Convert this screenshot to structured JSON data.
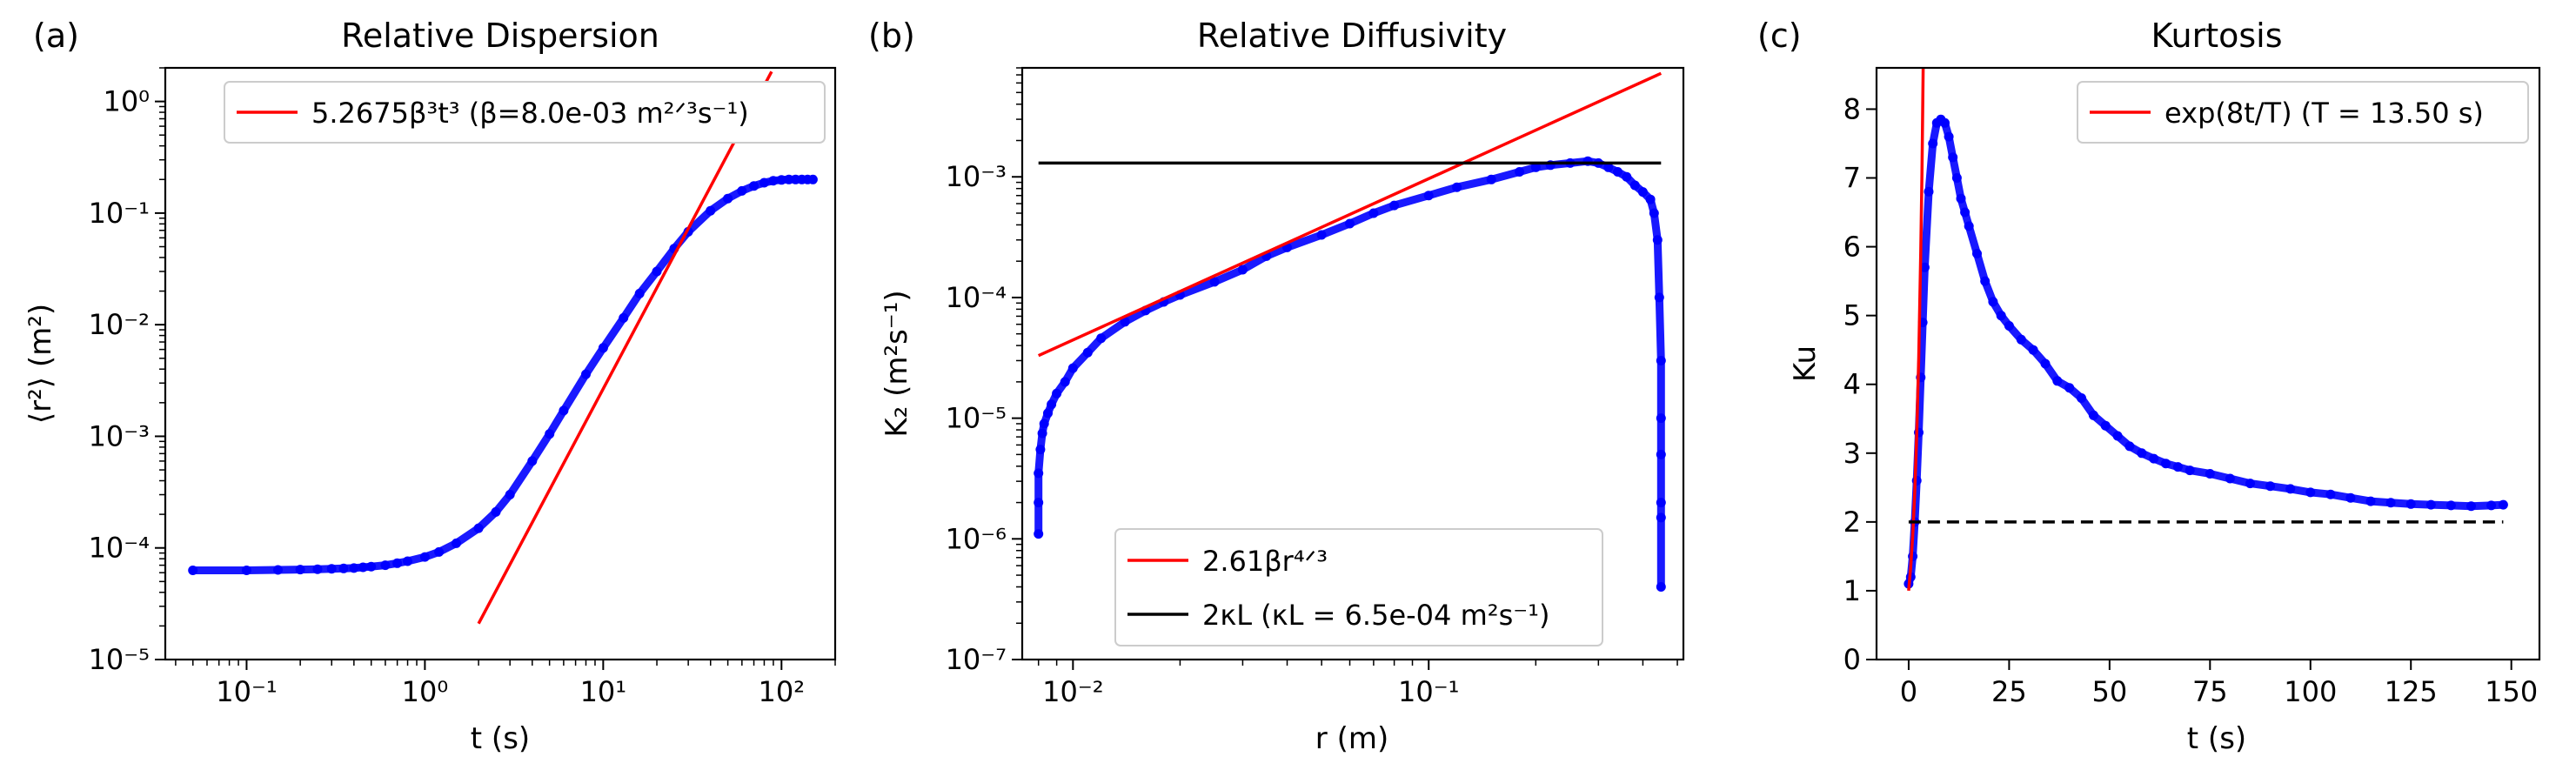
{
  "chart_data": [
    {
      "panel_label": "(a)",
      "type": "scatter",
      "title": "Relative Dispersion",
      "xlabel": "t (s)",
      "ylabel": "⟨r²⟩ (m²)",
      "xscale": "log",
      "yscale": "log",
      "xlim": [
        0.035,
        200
      ],
      "ylim": [
        1e-05,
        2
      ],
      "xticks": [
        0.1,
        1,
        10,
        100
      ],
      "xtick_labels": [
        "10⁻¹",
        "10⁰",
        "10¹",
        "10²"
      ],
      "yticks": [
        1e-05,
        0.0001,
        0.001,
        0.01,
        0.1,
        1
      ],
      "ytick_labels": [
        "10⁻⁵",
        "10⁻⁴",
        "10⁻³",
        "10⁻²",
        "10⁻¹",
        "10⁰"
      ],
      "legend_position": "upper right",
      "series": [
        {
          "name": "",
          "kind": "scatter",
          "color": "#0000ff",
          "x": [
            0.05,
            0.1,
            0.15,
            0.2,
            0.25,
            0.3,
            0.35,
            0.4,
            0.45,
            0.5,
            0.6,
            0.7,
            0.8,
            1.0,
            1.2,
            1.5,
            2.0,
            2.5,
            3.0,
            4.0,
            5.0,
            6.0,
            8.0,
            10,
            13,
            16,
            20,
            25,
            30,
            40,
            50,
            60,
            70,
            80,
            90,
            100,
            110,
            120,
            130,
            140,
            150
          ],
          "y": [
            6.3e-05,
            6.3e-05,
            6.35e-05,
            6.4e-05,
            6.45e-05,
            6.5e-05,
            6.55e-05,
            6.6e-05,
            6.7e-05,
            6.8e-05,
            7e-05,
            7.3e-05,
            7.6e-05,
            8.3e-05,
            9.2e-05,
            0.00011,
            0.00015,
            0.00021,
            0.0003,
            0.0006,
            0.00105,
            0.0017,
            0.0036,
            0.0062,
            0.0115,
            0.019,
            0.03,
            0.048,
            0.068,
            0.105,
            0.135,
            0.158,
            0.175,
            0.187,
            0.195,
            0.198,
            0.2,
            0.2,
            0.2,
            0.2,
            0.2
          ]
        },
        {
          "name": "5.2675β³t³ (β=8.0e-03 m²ᐟ³s⁻¹)",
          "kind": "line",
          "color": "#ff0000",
          "x": [
            2,
            88
          ],
          "y": [
            2.1e-05,
            1.85
          ]
        }
      ]
    },
    {
      "panel_label": "(b)",
      "type": "scatter",
      "title": "Relative Diffusivity",
      "xlabel": "r (m)",
      "ylabel": "K₂ (m²s⁻¹)",
      "xscale": "log",
      "yscale": "log",
      "xlim": [
        0.0072,
        0.52
      ],
      "ylim": [
        1e-07,
        0.008
      ],
      "xticks": [
        0.01,
        0.1
      ],
      "xtick_labels": [
        "10⁻²",
        "10⁻¹"
      ],
      "yticks": [
        1e-07,
        1e-06,
        1e-05,
        0.0001,
        0.001
      ],
      "ytick_labels": [
        "10⁻⁷",
        "10⁻⁶",
        "10⁻⁵",
        "10⁻⁴",
        "10⁻³"
      ],
      "legend_position": "lower right",
      "series": [
        {
          "name": "",
          "kind": "scatter",
          "color": "#0000ff",
          "x": [
            0.008,
            0.008,
            0.008,
            0.0081,
            0.0082,
            0.0083,
            0.0085,
            0.0087,
            0.009,
            0.0095,
            0.01,
            0.011,
            0.012,
            0.014,
            0.016,
            0.018,
            0.02,
            0.025,
            0.03,
            0.035,
            0.04,
            0.05,
            0.06,
            0.07,
            0.08,
            0.1,
            0.12,
            0.15,
            0.18,
            0.2,
            0.22,
            0.25,
            0.28,
            0.3,
            0.32,
            0.34,
            0.36,
            0.38,
            0.4,
            0.42,
            0.43,
            0.44,
            0.445,
            0.45,
            0.45,
            0.45,
            0.45,
            0.45,
            0.45
          ],
          "y": [
            1.1e-06,
            2e-06,
            3.5e-06,
            5.5e-06,
            7.5e-06,
            9e-06,
            1.1e-05,
            1.3e-05,
            1.6e-05,
            2e-05,
            2.6e-05,
            3.5e-05,
            4.6e-05,
            6.3e-05,
            7.8e-05,
            9.2e-05,
            0.000105,
            0.000135,
            0.00017,
            0.00022,
            0.00026,
            0.00033,
            0.00041,
            0.0005,
            0.00058,
            0.0007,
            0.00082,
            0.00095,
            0.0011,
            0.0012,
            0.00125,
            0.0013,
            0.00135,
            0.0013,
            0.0012,
            0.0011,
            0.001,
            0.00085,
            0.00075,
            0.00065,
            0.0005,
            0.0003,
            0.0001,
            3e-05,
            1e-05,
            5e-06,
            2e-06,
            1.5e-06,
            4e-07
          ]
        },
        {
          "name": "2.61βr⁴ᐟ³",
          "kind": "line",
          "color": "#ff0000",
          "x": [
            0.008,
            0.45
          ],
          "y": [
            3.3e-05,
            0.0072
          ]
        },
        {
          "name": "2κL (κL = 6.5e-04 m²s⁻¹)",
          "kind": "line",
          "color": "#000000",
          "x": [
            0.008,
            0.45
          ],
          "y": [
            0.0013,
            0.0013
          ]
        }
      ]
    },
    {
      "panel_label": "(c)",
      "type": "line",
      "title": "Kurtosis",
      "xlabel": "t (s)",
      "ylabel": "Ku",
      "xscale": "linear",
      "yscale": "linear",
      "xlim": [
        -8,
        157
      ],
      "ylim": [
        0,
        8.6
      ],
      "xticks": [
        0,
        25,
        50,
        75,
        100,
        125,
        150
      ],
      "xtick_labels": [
        "0",
        "25",
        "50",
        "75",
        "100",
        "125",
        "150"
      ],
      "yticks": [
        0,
        1,
        2,
        3,
        4,
        5,
        6,
        7,
        8
      ],
      "ytick_labels": [
        "0",
        "1",
        "2",
        "3",
        "4",
        "5",
        "6",
        "7",
        "8"
      ],
      "legend_position": "upper right",
      "series": [
        {
          "name": "",
          "kind": "scatter",
          "color": "#0000ff",
          "x": [
            0,
            0.5,
            1,
            1.5,
            2,
            2.5,
            3,
            3.5,
            4,
            5,
            6,
            7,
            8,
            9,
            10,
            11,
            12,
            13,
            14,
            15,
            17,
            19,
            21,
            23,
            25,
            28,
            31,
            34,
            37,
            40,
            43,
            46,
            49,
            52,
            55,
            58,
            61,
            64,
            67,
            70,
            75,
            80,
            85,
            90,
            95,
            100,
            105,
            110,
            115,
            120,
            125,
            130,
            135,
            140,
            145,
            148
          ],
          "y": [
            1.1,
            1.2,
            1.5,
            2.0,
            2.6,
            3.3,
            4.1,
            4.9,
            5.7,
            6.8,
            7.5,
            7.8,
            7.85,
            7.8,
            7.6,
            7.3,
            7.0,
            6.7,
            6.5,
            6.3,
            5.9,
            5.5,
            5.2,
            5.0,
            4.85,
            4.65,
            4.5,
            4.3,
            4.05,
            3.95,
            3.8,
            3.55,
            3.4,
            3.25,
            3.1,
            3.0,
            2.92,
            2.85,
            2.8,
            2.75,
            2.7,
            2.63,
            2.56,
            2.52,
            2.48,
            2.43,
            2.4,
            2.35,
            2.3,
            2.28,
            2.26,
            2.25,
            2.24,
            2.23,
            2.24,
            2.25
          ]
        },
        {
          "name": "exp(8t/T) (T = 13.50 s)",
          "kind": "line",
          "color": "#ff0000",
          "x": [
            0,
            0.5,
            1,
            1.5,
            2,
            2.5,
            3,
            3.3,
            3.6
          ],
          "y": [
            1.0,
            1.35,
            1.81,
            2.43,
            3.27,
            4.39,
            5.91,
            7.05,
            8.6
          ]
        },
        {
          "name": "",
          "kind": "line",
          "style": "dashed",
          "color": "#000000",
          "x": [
            0,
            148
          ],
          "y": [
            2.0,
            2.0
          ]
        }
      ]
    }
  ]
}
